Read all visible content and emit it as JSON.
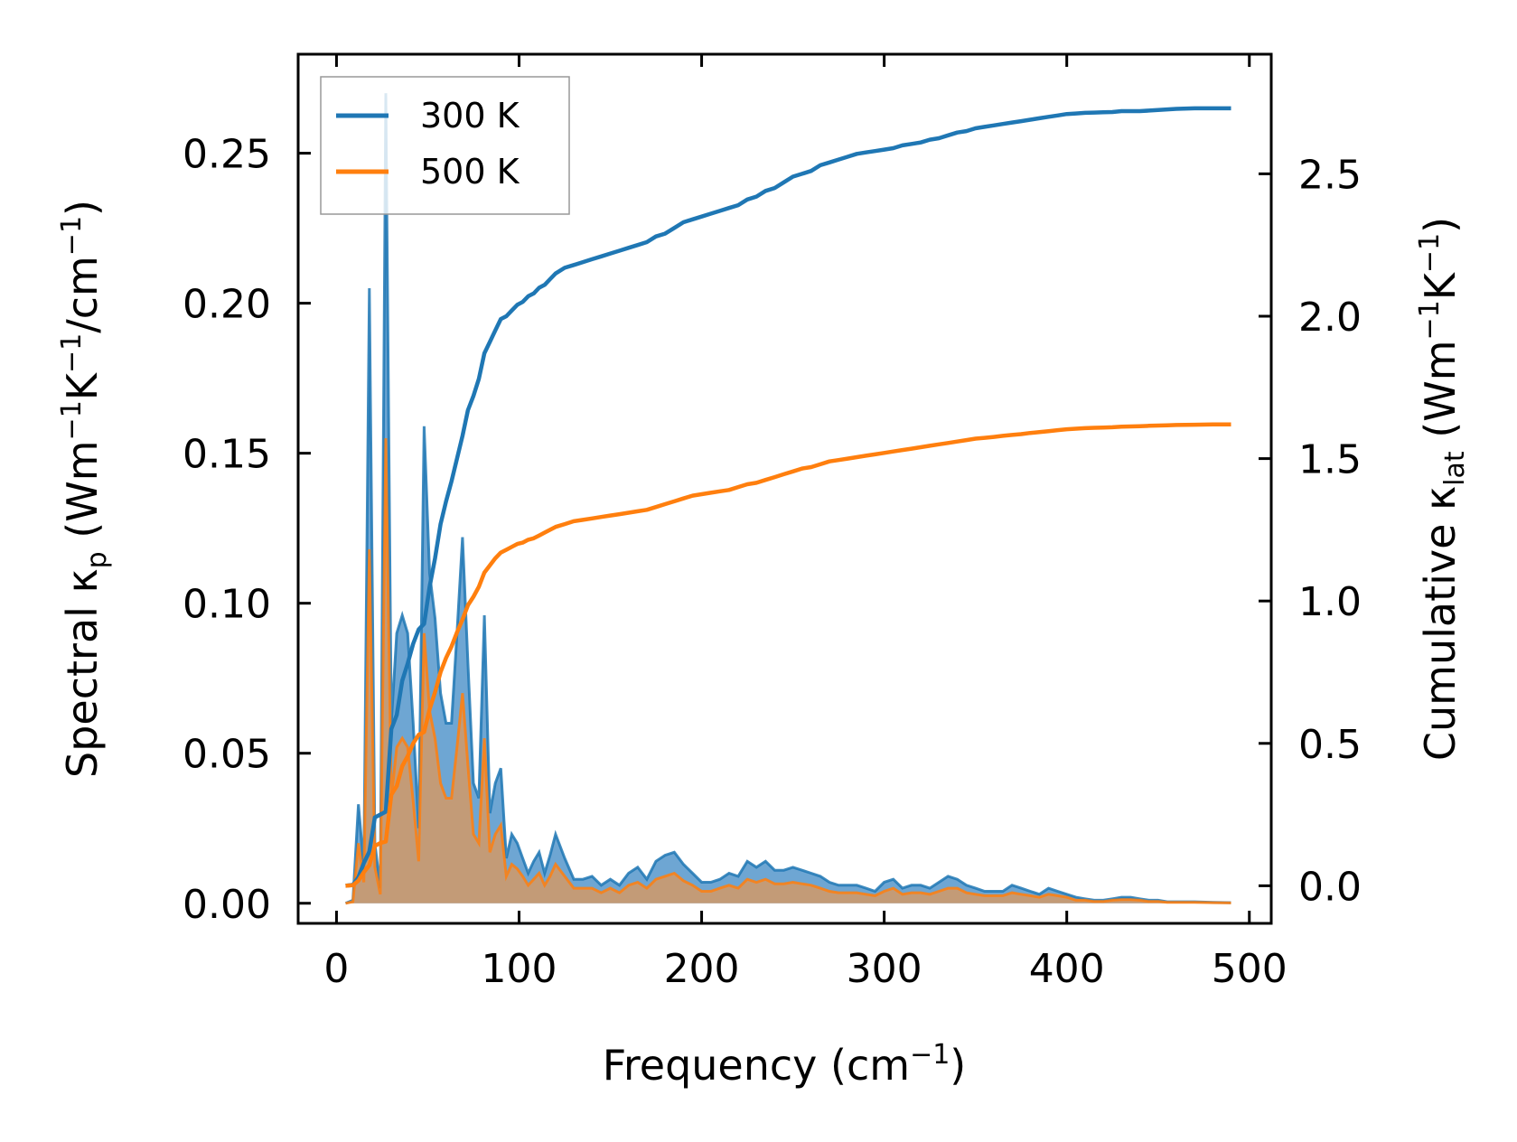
{
  "chart_data": {
    "type": "line",
    "x": [
      5,
      9,
      12,
      15,
      18,
      21,
      24,
      27,
      30,
      33,
      36,
      39,
      42,
      45,
      48,
      51,
      54,
      57,
      60,
      63,
      66,
      69,
      72,
      75,
      78,
      81,
      84,
      87,
      90,
      93,
      96,
      99,
      102,
      105,
      108,
      111,
      114,
      117,
      120,
      125,
      130,
      135,
      140,
      145,
      150,
      155,
      160,
      165,
      170,
      175,
      180,
      185,
      190,
      195,
      200,
      205,
      210,
      215,
      220,
      225,
      230,
      235,
      240,
      245,
      250,
      255,
      260,
      265,
      270,
      275,
      280,
      285,
      290,
      295,
      300,
      305,
      310,
      315,
      320,
      325,
      330,
      335,
      340,
      345,
      350,
      355,
      360,
      365,
      370,
      375,
      380,
      385,
      390,
      395,
      400,
      405,
      410,
      415,
      420,
      425,
      430,
      435,
      440,
      445,
      450,
      455,
      460,
      470,
      480,
      490
    ],
    "series": [
      {
        "name": "300 K",
        "color": "#1f77b4",
        "spectral": [
          0,
          0.001,
          0.033,
          0.012,
          0.205,
          0.02,
          0.005,
          0.27,
          0.06,
          0.09,
          0.096,
          0.09,
          0.06,
          0.025,
          0.159,
          0.11,
          0.095,
          0.07,
          0.06,
          0.06,
          0.09,
          0.122,
          0.08,
          0.04,
          0.035,
          0.096,
          0.03,
          0.04,
          0.045,
          0.015,
          0.023,
          0.02,
          0.015,
          0.01,
          0.014,
          0.017,
          0.01,
          0.016,
          0.023,
          0.015,
          0.008,
          0.008,
          0.009,
          0.006,
          0.008,
          0.006,
          0.01,
          0.012,
          0.008,
          0.014,
          0.016,
          0.017,
          0.013,
          0.01,
          0.007,
          0.007,
          0.008,
          0.01,
          0.009,
          0.014,
          0.012,
          0.014,
          0.011,
          0.011,
          0.012,
          0.011,
          0.01,
          0.009,
          0.007,
          0.006,
          0.006,
          0.006,
          0.005,
          0.004,
          0.007,
          0.008,
          0.005,
          0.006,
          0.006,
          0.005,
          0.007,
          0.009,
          0.008,
          0.006,
          0.005,
          0.004,
          0.004,
          0.004,
          0.006,
          0.005,
          0.004,
          0.003,
          0.005,
          0.004,
          0.003,
          0.002,
          0.0015,
          0.001,
          0.001,
          0.0015,
          0.002,
          0.002,
          0.0015,
          0.001,
          0.001,
          0.0005,
          0.0005,
          0.0005,
          0.0003,
          0.0002
        ],
        "cumulative": [
          0,
          0.003,
          0.03,
          0.08,
          0.12,
          0.24,
          0.25,
          0.26,
          0.55,
          0.6,
          0.72,
          0.78,
          0.85,
          0.9,
          0.92,
          1.05,
          1.15,
          1.27,
          1.35,
          1.42,
          1.5,
          1.58,
          1.67,
          1.72,
          1.78,
          1.87,
          1.91,
          1.95,
          1.99,
          2.0,
          2.02,
          2.04,
          2.05,
          2.07,
          2.08,
          2.1,
          2.11,
          2.13,
          2.15,
          2.17,
          2.18,
          2.19,
          2.2,
          2.21,
          2.22,
          2.23,
          2.24,
          2.25,
          2.26,
          2.28,
          2.29,
          2.31,
          2.33,
          2.34,
          2.35,
          2.36,
          2.37,
          2.38,
          2.39,
          2.41,
          2.42,
          2.44,
          2.45,
          2.47,
          2.49,
          2.5,
          2.51,
          2.53,
          2.54,
          2.55,
          2.56,
          2.57,
          2.575,
          2.58,
          2.585,
          2.59,
          2.6,
          2.605,
          2.61,
          2.62,
          2.625,
          2.635,
          2.645,
          2.65,
          2.66,
          2.665,
          2.67,
          2.675,
          2.68,
          2.685,
          2.69,
          2.695,
          2.7,
          2.705,
          2.71,
          2.712,
          2.714,
          2.715,
          2.716,
          2.717,
          2.72,
          2.72,
          2.72,
          2.722,
          2.724,
          2.726,
          2.728,
          2.73,
          2.73,
          2.73
        ]
      },
      {
        "name": "500 K",
        "color": "#ff7f0e",
        "spectral": [
          0,
          0.0005,
          0.02,
          0.007,
          0.118,
          0.012,
          0.003,
          0.155,
          0.035,
          0.052,
          0.055,
          0.052,
          0.034,
          0.014,
          0.09,
          0.064,
          0.055,
          0.04,
          0.035,
          0.035,
          0.052,
          0.07,
          0.046,
          0.023,
          0.02,
          0.055,
          0.017,
          0.023,
          0.026,
          0.009,
          0.013,
          0.0115,
          0.009,
          0.006,
          0.008,
          0.01,
          0.006,
          0.009,
          0.013,
          0.009,
          0.005,
          0.005,
          0.005,
          0.0035,
          0.005,
          0.0035,
          0.006,
          0.007,
          0.005,
          0.008,
          0.009,
          0.01,
          0.0075,
          0.006,
          0.004,
          0.004,
          0.005,
          0.006,
          0.005,
          0.008,
          0.007,
          0.008,
          0.0065,
          0.0065,
          0.007,
          0.0065,
          0.006,
          0.005,
          0.004,
          0.0035,
          0.0035,
          0.0035,
          0.003,
          0.0025,
          0.004,
          0.005,
          0.003,
          0.0035,
          0.0035,
          0.003,
          0.004,
          0.005,
          0.005,
          0.0035,
          0.003,
          0.0025,
          0.0025,
          0.0025,
          0.0035,
          0.003,
          0.0025,
          0.002,
          0.003,
          0.0025,
          0.002,
          0.001,
          0.001,
          0.0006,
          0.0006,
          0.001,
          0.0012,
          0.0012,
          0.001,
          0.0006,
          0.0006,
          0.0003,
          0.0003,
          0.0003,
          0.0002,
          0.0001
        ],
        "cumulative": [
          0,
          0.002,
          0.018,
          0.048,
          0.072,
          0.14,
          0.15,
          0.155,
          0.32,
          0.35,
          0.42,
          0.455,
          0.5,
          0.53,
          0.54,
          0.62,
          0.68,
          0.75,
          0.8,
          0.84,
          0.89,
          0.935,
          0.985,
          1.015,
          1.05,
          1.1,
          1.125,
          1.15,
          1.17,
          1.18,
          1.19,
          1.2,
          1.205,
          1.215,
          1.22,
          1.23,
          1.24,
          1.25,
          1.26,
          1.27,
          1.28,
          1.285,
          1.29,
          1.295,
          1.3,
          1.305,
          1.31,
          1.315,
          1.32,
          1.33,
          1.34,
          1.35,
          1.36,
          1.37,
          1.375,
          1.38,
          1.385,
          1.39,
          1.4,
          1.41,
          1.415,
          1.425,
          1.435,
          1.445,
          1.455,
          1.465,
          1.47,
          1.48,
          1.49,
          1.495,
          1.5,
          1.505,
          1.51,
          1.515,
          1.52,
          1.525,
          1.53,
          1.535,
          1.54,
          1.545,
          1.55,
          1.555,
          1.56,
          1.565,
          1.57,
          1.573,
          1.576,
          1.58,
          1.583,
          1.586,
          1.59,
          1.593,
          1.596,
          1.6,
          1.603,
          1.605,
          1.607,
          1.608,
          1.609,
          1.61,
          1.612,
          1.613,
          1.614,
          1.615,
          1.616,
          1.617,
          1.618,
          1.619,
          1.62,
          1.62
        ]
      }
    ],
    "xlabel": "Frequency (cm⁻¹)",
    "ylabel_left": "Spectral κp (Wm⁻¹K⁻¹/cm⁻¹)",
    "ylabel_right": "Cumulative κlat (Wm⁻¹K⁻¹)",
    "xlim": [
      -21,
      512
    ],
    "ylim_left": [
      -0.0067,
      0.283
    ],
    "ylim_right": [
      -0.132,
      2.92
    ],
    "xticks": [
      "0",
      "100",
      "200",
      "300",
      "400",
      "500"
    ],
    "yticks_left": [
      "0.00",
      "0.05",
      "0.10",
      "0.15",
      "0.20",
      "0.25"
    ],
    "yticks_right": [
      "0.0",
      "0.5",
      "1.0",
      "1.5",
      "2.0",
      "2.5"
    ],
    "legend": [
      "300 K",
      "500 K"
    ],
    "legend_position": "upper-left",
    "grid": false
  }
}
